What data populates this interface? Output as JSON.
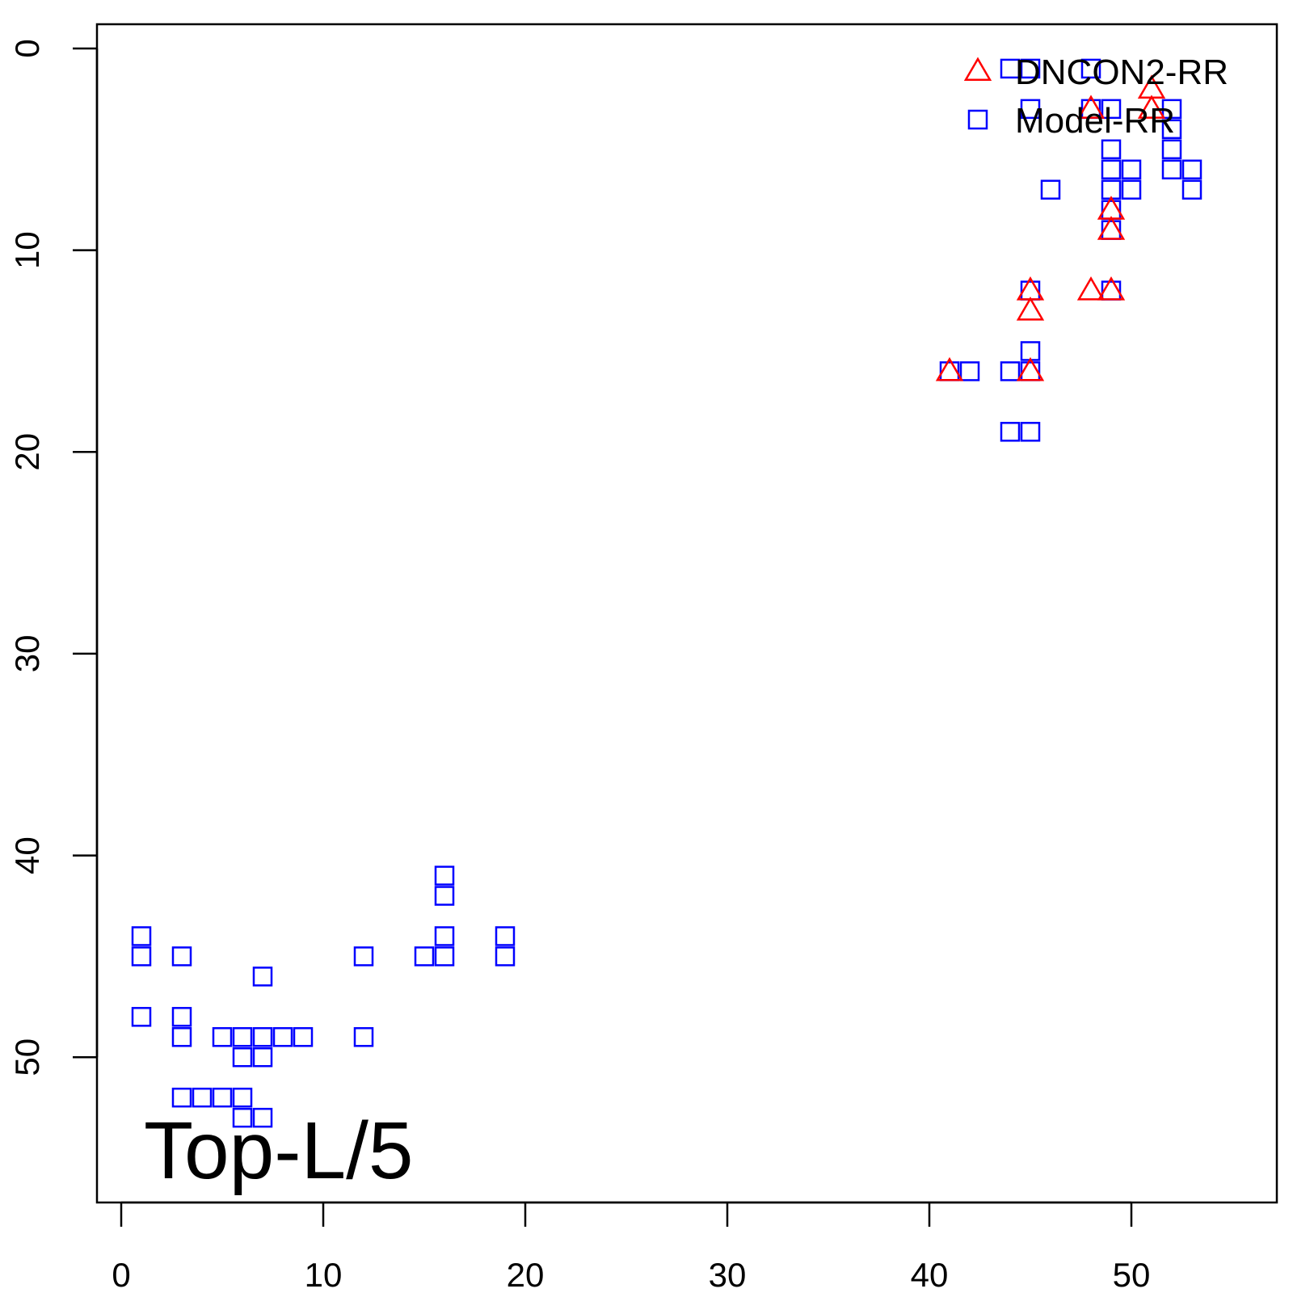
{
  "chart_data": {
    "type": "scatter",
    "title": "",
    "xlabel": "",
    "ylabel": "",
    "xlim": [
      -1.2,
      57.2
    ],
    "ylim": [
      -1.2,
      57.2
    ],
    "y_reversed": true,
    "grid": false,
    "x_ticks": [
      0,
      10,
      20,
      30,
      40,
      50
    ],
    "y_ticks": [
      0,
      10,
      20,
      30,
      40,
      50
    ],
    "legend": {
      "position": "top-right"
    },
    "annotation": "Top-L/5",
    "series": [
      {
        "name": "DNCON2-RR",
        "marker": "triangle",
        "color": "#ff0000",
        "points": [
          [
            51,
            2
          ],
          [
            48,
            3
          ],
          [
            51,
            3
          ],
          [
            49,
            8
          ],
          [
            49,
            9
          ],
          [
            45,
            12
          ],
          [
            48,
            12
          ],
          [
            49,
            12
          ],
          [
            45,
            13
          ],
          [
            41,
            16
          ],
          [
            45,
            16
          ]
        ]
      },
      {
        "name": "Model-RR",
        "marker": "square",
        "color": "#0000ff",
        "points": [
          [
            44,
            1
          ],
          [
            45,
            1
          ],
          [
            48,
            1
          ],
          [
            45,
            3
          ],
          [
            48,
            3
          ],
          [
            49,
            3
          ],
          [
            52,
            3
          ],
          [
            52,
            4
          ],
          [
            49,
            5
          ],
          [
            52,
            5
          ],
          [
            49,
            6
          ],
          [
            50,
            6
          ],
          [
            52,
            6
          ],
          [
            53,
            6
          ],
          [
            46,
            7
          ],
          [
            49,
            7
          ],
          [
            50,
            7
          ],
          [
            53,
            7
          ],
          [
            49,
            8
          ],
          [
            49,
            9
          ],
          [
            45,
            12
          ],
          [
            49,
            12
          ],
          [
            45,
            15
          ],
          [
            41,
            16
          ],
          [
            42,
            16
          ],
          [
            44,
            16
          ],
          [
            45,
            16
          ],
          [
            44,
            19
          ],
          [
            45,
            19
          ],
          [
            16,
            41
          ],
          [
            16,
            42
          ],
          [
            1,
            44
          ],
          [
            16,
            44
          ],
          [
            19,
            44
          ],
          [
            1,
            45
          ],
          [
            3,
            45
          ],
          [
            12,
            45
          ],
          [
            15,
            45
          ],
          [
            16,
            45
          ],
          [
            19,
            45
          ],
          [
            7,
            46
          ],
          [
            1,
            48
          ],
          [
            3,
            48
          ],
          [
            3,
            49
          ],
          [
            5,
            49
          ],
          [
            6,
            49
          ],
          [
            7,
            49
          ],
          [
            8,
            49
          ],
          [
            9,
            49
          ],
          [
            12,
            49
          ],
          [
            6,
            50
          ],
          [
            7,
            50
          ],
          [
            3,
            52
          ],
          [
            4,
            52
          ],
          [
            5,
            52
          ],
          [
            6,
            52
          ],
          [
            6,
            53
          ],
          [
            7,
            53
          ]
        ]
      }
    ]
  }
}
